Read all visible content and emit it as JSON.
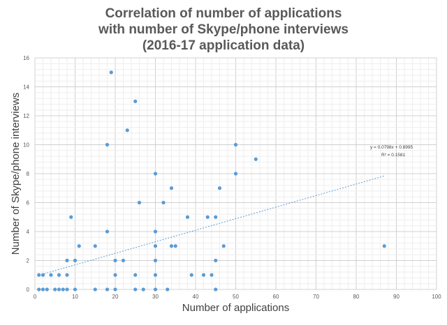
{
  "chart_data": {
    "type": "scatter",
    "title_lines": [
      "Correlation of number of applications",
      "with number of Skype/phone interviews",
      "(2016-17 application data)"
    ],
    "xlabel": "Number of applications",
    "ylabel": "Number of Skype/phone interviews",
    "xlim": [
      0,
      100
    ],
    "ylim": [
      0,
      16
    ],
    "x_ticks": [
      "0",
      "10",
      "20",
      "30",
      "40",
      "50",
      "60",
      "70",
      "80",
      "90",
      "100"
    ],
    "y_ticks": [
      "0",
      "2",
      "4",
      "6",
      "8",
      "10",
      "12",
      "14",
      "16"
    ],
    "grid": true,
    "marker_color": "#5b9bd5",
    "trendline": {
      "equation": "y = 0.0798x + 0.8995",
      "r_squared": "R² = 0.1581",
      "slope": 0.0798,
      "intercept": 0.8995,
      "x_range": [
        1,
        87
      ]
    },
    "points": [
      [
        1,
        0
      ],
      [
        1,
        1
      ],
      [
        2,
        0
      ],
      [
        2,
        1
      ],
      [
        3,
        0
      ],
      [
        4,
        1
      ],
      [
        5,
        0
      ],
      [
        6,
        0
      ],
      [
        6,
        1
      ],
      [
        7,
        0
      ],
      [
        8,
        0
      ],
      [
        8,
        1
      ],
      [
        8,
        2
      ],
      [
        9,
        5
      ],
      [
        10,
        0
      ],
      [
        10,
        2
      ],
      [
        11,
        3
      ],
      [
        15,
        0
      ],
      [
        15,
        3
      ],
      [
        18,
        0
      ],
      [
        18,
        4
      ],
      [
        18,
        10
      ],
      [
        19,
        15
      ],
      [
        20,
        0
      ],
      [
        20,
        1
      ],
      [
        20,
        2
      ],
      [
        22,
        2
      ],
      [
        23,
        11
      ],
      [
        25,
        0
      ],
      [
        25,
        1
      ],
      [
        25,
        13
      ],
      [
        26,
        6
      ],
      [
        27,
        0
      ],
      [
        30,
        0
      ],
      [
        30,
        1
      ],
      [
        30,
        2
      ],
      [
        30,
        3
      ],
      [
        30,
        4
      ],
      [
        30,
        8
      ],
      [
        32,
        6
      ],
      [
        33,
        0
      ],
      [
        34,
        3
      ],
      [
        34,
        7
      ],
      [
        35,
        3
      ],
      [
        38,
        5
      ],
      [
        39,
        1
      ],
      [
        42,
        1
      ],
      [
        43,
        5
      ],
      [
        44,
        1
      ],
      [
        45,
        0
      ],
      [
        45,
        2
      ],
      [
        45,
        5
      ],
      [
        46,
        7
      ],
      [
        47,
        3
      ],
      [
        50,
        8
      ],
      [
        50,
        10
      ],
      [
        55,
        9
      ],
      [
        87,
        3
      ]
    ]
  }
}
